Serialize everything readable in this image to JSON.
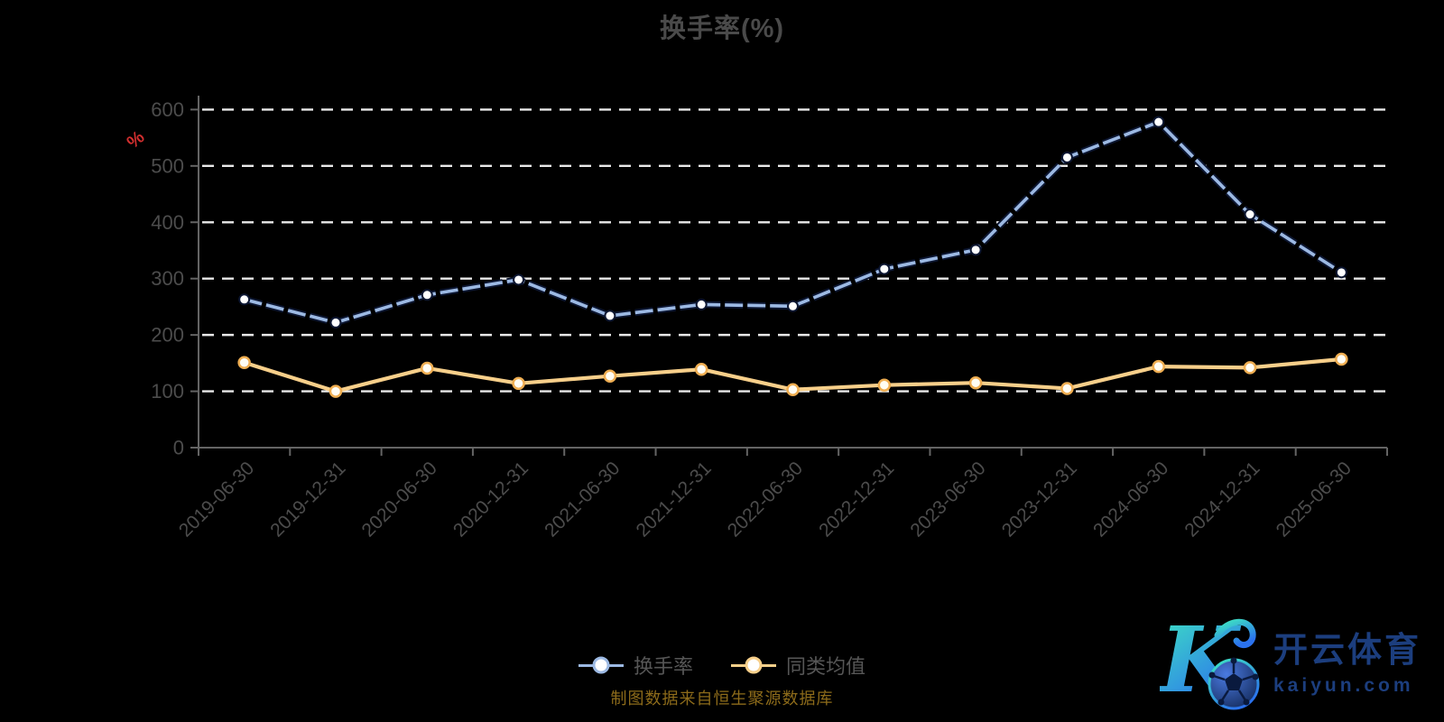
{
  "page": {
    "background": "#000000"
  },
  "chart_data": {
    "type": "line",
    "title": "换手率(%)",
    "y_axis_unit": "%",
    "xlabel": "",
    "ylabel": "",
    "categories": [
      "2019-06-30",
      "2019-12-31",
      "2020-06-30",
      "2020-12-31",
      "2021-06-30",
      "2021-12-31",
      "2022-06-30",
      "2022-12-31",
      "2023-06-30",
      "2023-12-31",
      "2024-06-30",
      "2024-12-31",
      "2025-06-30"
    ],
    "series": [
      {
        "name": "换手率",
        "values": [
          263,
          222,
          271,
          298,
          234,
          254,
          251,
          317,
          351,
          515,
          578,
          414,
          311
        ],
        "color": "#9cb9e3",
        "outline_color": "#0c1631",
        "line_style": "dashed",
        "marker": "white-circle"
      },
      {
        "name": "同类均值",
        "values": [
          151,
          100,
          141,
          114,
          127,
          139,
          103,
          111,
          115,
          105,
          144,
          142,
          157
        ],
        "color": "#f7cf8a",
        "marker_stroke": "#efae52",
        "line_style": "solid",
        "marker": "white-circle"
      }
    ],
    "ylim": [
      0,
      600
    ],
    "yticks": [
      0,
      100,
      200,
      300,
      400,
      500,
      600
    ],
    "grid": "horizontal-dashed-white",
    "legend_position": "bottom-center",
    "x_label_rotation": -45
  },
  "footer": {
    "text": "制图数据来自恒生聚源数据库",
    "color": "#8d6b1a"
  },
  "watermark": {
    "brand": "开云体育",
    "domain": "kaiyun.com",
    "logo_letter": "K",
    "text_color": "#1c3e7e",
    "logo_gradient": [
      "#3fe8c0",
      "#2b72ee"
    ]
  },
  "colors": {
    "title": "#4a4a4a",
    "axis_label": "#4c4c4c",
    "axis_line": "#646464",
    "gridline": "#e9e9e9",
    "unit_label": "#d22f2f",
    "legend_text": "#565656"
  }
}
